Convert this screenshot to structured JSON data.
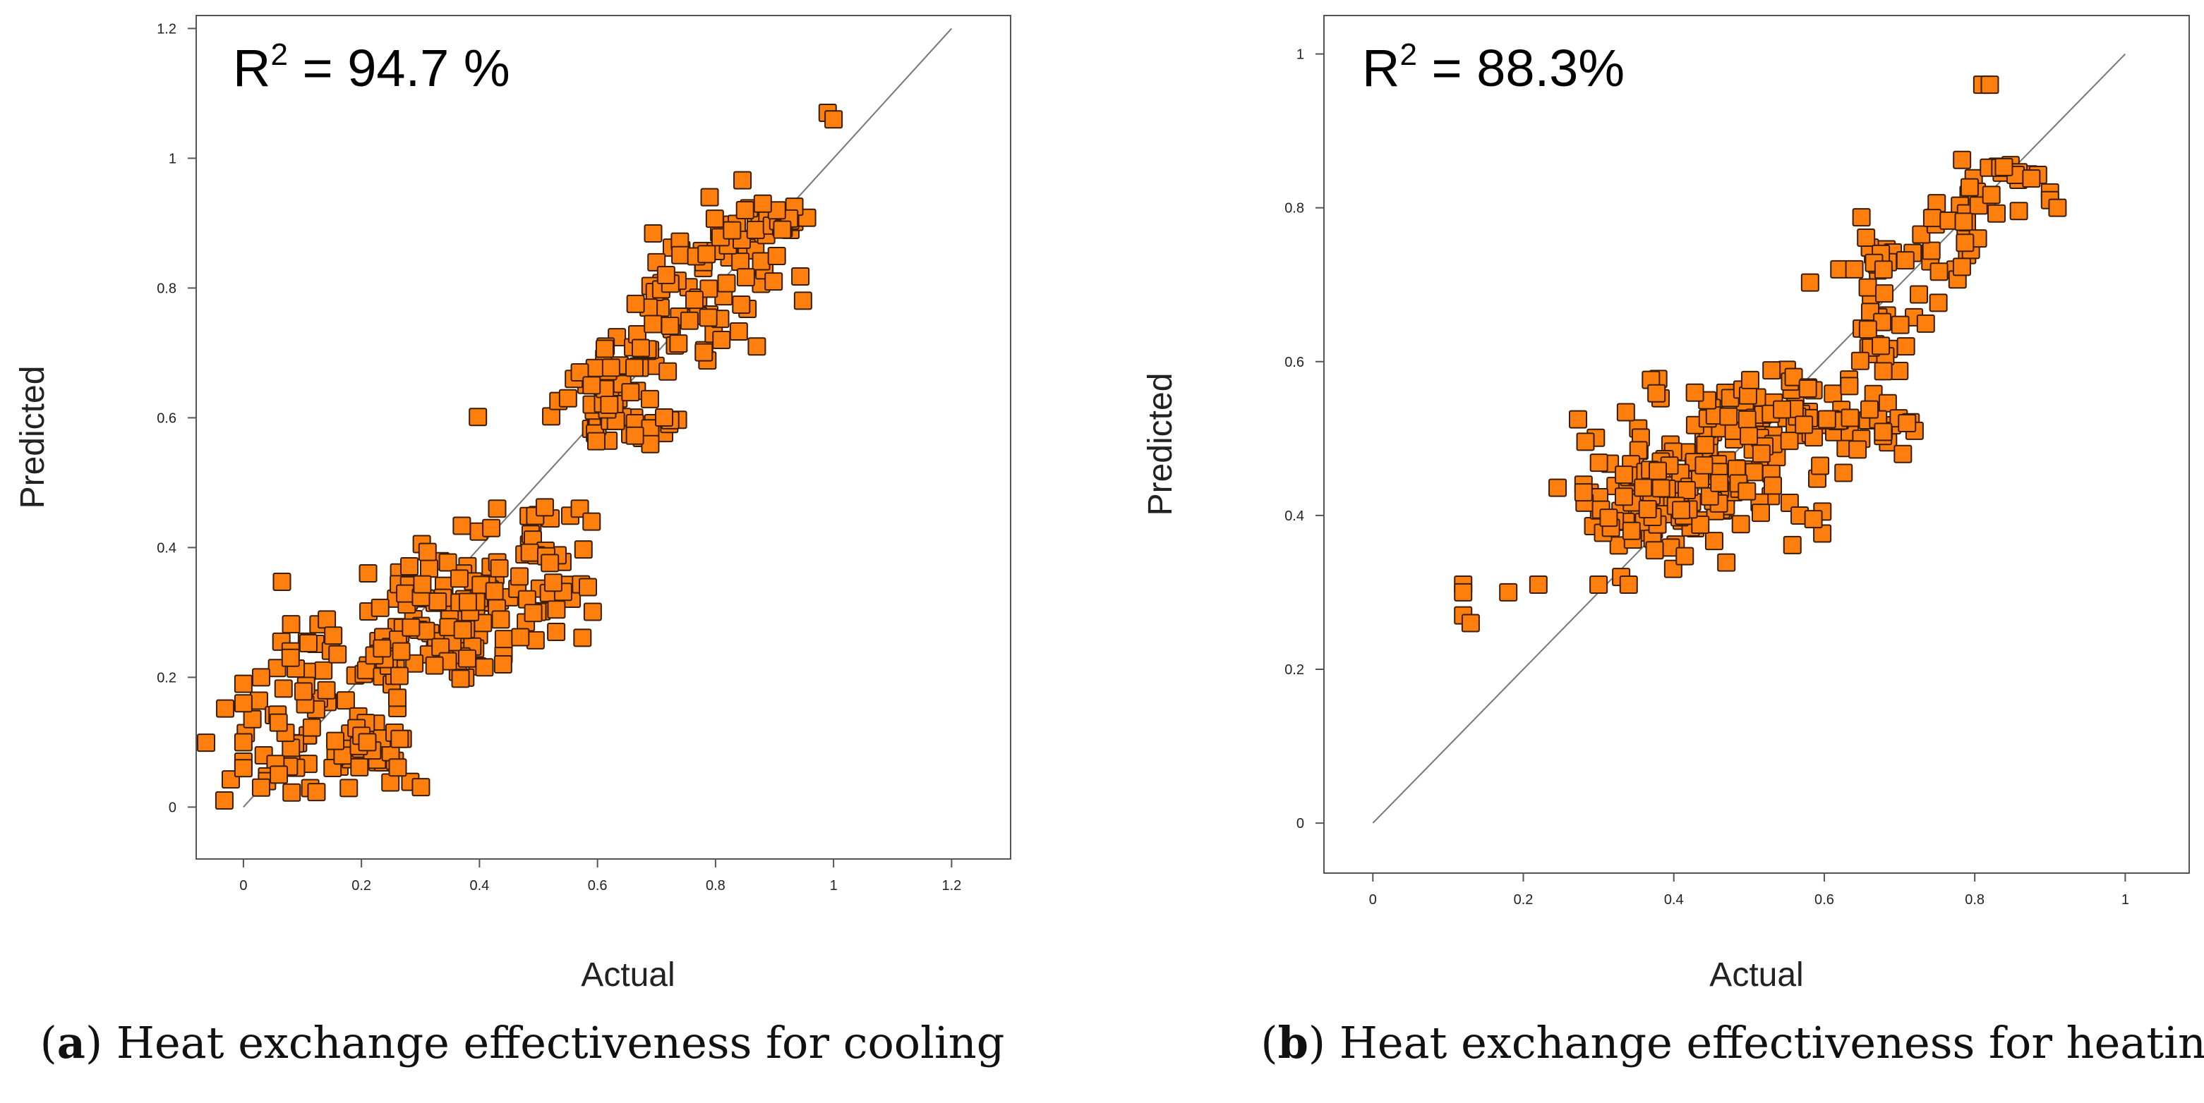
{
  "chart_data": [
    {
      "type": "scatter",
      "panel": "a",
      "title_prefix": "R",
      "title_sup": "2",
      "title_value": " = 94.7 %",
      "xlabel": "Actual",
      "ylabel": "Predicted",
      "xlim": [
        -0.08,
        1.3
      ],
      "ylim": [
        -0.08,
        1.22
      ],
      "xticks": [
        "0",
        "0.2",
        "0.4",
        "0.6",
        "0.8",
        "1",
        "1.2"
      ],
      "xtick_values": [
        0,
        0.2,
        0.4,
        0.6,
        0.8,
        1.0,
        1.2
      ],
      "yticks": [
        "0",
        "0.2",
        "0.4",
        "0.6",
        "0.8",
        "1",
        "1.2"
      ],
      "ytick_values": [
        0,
        0.2,
        0.4,
        0.6,
        0.8,
        1.0,
        1.2
      ],
      "reference_line": [
        [
          0,
          0
        ],
        [
          1.2,
          1.2
        ]
      ],
      "caption_label": "a",
      "caption_text": "Heat exchange effectiveness for cooling",
      "clusters": [
        {
          "cx": 0.5,
          "cy": 0.43,
          "sx": 0.045,
          "sy": 0.015,
          "n": 10
        },
        {
          "cx": 0.48,
          "cy": 0.35,
          "sx": 0.07,
          "sy": 0.04,
          "n": 40
        },
        {
          "cx": 0.33,
          "cy": 0.33,
          "sx": 0.08,
          "sy": 0.04,
          "n": 60
        },
        {
          "cx": 0.3,
          "cy": 0.24,
          "sx": 0.09,
          "sy": 0.04,
          "n": 60
        },
        {
          "cx": 0.18,
          "cy": 0.08,
          "sx": 0.06,
          "sy": 0.02,
          "n": 40
        },
        {
          "cx": 0.12,
          "cy": 0.17,
          "sx": 0.05,
          "sy": 0.06,
          "n": 30
        },
        {
          "cx": 0.02,
          "cy": 0.1,
          "sx": 0.03,
          "sy": 0.06,
          "n": 10
        },
        {
          "cx": 0.62,
          "cy": 0.6,
          "sx": 0.06,
          "sy": 0.025,
          "n": 40
        },
        {
          "cx": 0.65,
          "cy": 0.69,
          "sx": 0.05,
          "sy": 0.02,
          "n": 20
        },
        {
          "cx": 0.75,
          "cy": 0.77,
          "sx": 0.05,
          "sy": 0.05,
          "n": 40
        },
        {
          "cx": 0.86,
          "cy": 0.86,
          "sx": 0.05,
          "sy": 0.04,
          "n": 40
        },
        {
          "cx": 0.93,
          "cy": 0.9,
          "sx": 0.02,
          "sy": 0.015,
          "n": 15
        }
      ],
      "points": [
        [
          0.56,
          0.66
        ],
        [
          0.57,
          0.67
        ],
        [
          0.55,
          0.63
        ],
        [
          0.59,
          0.65
        ],
        [
          0.62,
          0.62
        ],
        [
          0.99,
          1.07
        ],
        [
          1.0,
          1.06
        ],
        [
          0.79,
          0.94
        ],
        [
          0.85,
          0.92
        ],
        [
          0.88,
          0.93
        ],
        [
          0.81,
          0.72
        ],
        [
          0.87,
          0.71
        ],
        [
          0.0,
          0.19
        ],
        [
          0.03,
          0.2
        ],
        [
          0.0,
          0.16
        ],
        [
          0.08,
          0.24
        ],
        [
          0.08,
          0.23
        ],
        [
          0.04,
          0.04
        ],
        [
          0.03,
          0.03
        ],
        [
          0.06,
          0.05
        ],
        [
          0.43,
          0.46
        ],
        [
          0.42,
          0.43
        ],
        [
          0.57,
          0.46
        ],
        [
          0.59,
          0.44
        ],
        [
          0.53,
          0.27
        ],
        [
          0.44,
          0.22
        ],
        [
          0.2,
          0.11
        ],
        [
          0.21,
          0.1
        ],
        [
          0.0,
          0.07
        ],
        [
          0.0,
          0.06
        ]
      ]
    },
    {
      "type": "scatter",
      "panel": "b",
      "title_prefix": "R",
      "title_sup": "2",
      "title_value": " = 88.3%",
      "xlabel": "Actual",
      "ylabel": "Predicted",
      "xlim": [
        -0.065,
        1.085
      ],
      "ylim": [
        -0.065,
        1.05
      ],
      "xticks": [
        "0",
        "0.2",
        "0.4",
        "0.6",
        "0.8",
        "1"
      ],
      "xtick_values": [
        0,
        0.2,
        0.4,
        0.6,
        0.8,
        1.0
      ],
      "yticks": [
        "0",
        "0.2",
        "0.4",
        "0.6",
        "0.8",
        "1"
      ],
      "ytick_values": [
        0,
        0.2,
        0.4,
        0.6,
        0.8,
        1.0
      ],
      "reference_line": [
        [
          0,
          0
        ],
        [
          1.0,
          1.0
        ]
      ],
      "caption_label": "b",
      "caption_text": "Heat exchange effectiveness for heating",
      "clusters": [
        {
          "cx": 0.45,
          "cy": 0.46,
          "sx": 0.08,
          "sy": 0.05,
          "n": 120
        },
        {
          "cx": 0.38,
          "cy": 0.41,
          "sx": 0.06,
          "sy": 0.04,
          "n": 60
        },
        {
          "cx": 0.56,
          "cy": 0.53,
          "sx": 0.06,
          "sy": 0.03,
          "n": 50
        },
        {
          "cx": 0.65,
          "cy": 0.52,
          "sx": 0.04,
          "sy": 0.02,
          "n": 15
        },
        {
          "cx": 0.67,
          "cy": 0.63,
          "sx": 0.03,
          "sy": 0.03,
          "n": 20
        },
        {
          "cx": 0.68,
          "cy": 0.72,
          "sx": 0.04,
          "sy": 0.035,
          "n": 30
        },
        {
          "cx": 0.79,
          "cy": 0.8,
          "sx": 0.03,
          "sy": 0.025,
          "n": 25
        },
        {
          "cx": 0.85,
          "cy": 0.85,
          "sx": 0.015,
          "sy": 0.01,
          "n": 12
        }
      ],
      "points": [
        [
          0.12,
          0.31
        ],
        [
          0.12,
          0.3
        ],
        [
          0.12,
          0.27
        ],
        [
          0.13,
          0.26
        ],
        [
          0.18,
          0.3
        ],
        [
          0.22,
          0.31
        ],
        [
          0.28,
          0.44
        ],
        [
          0.28,
          0.43
        ],
        [
          0.33,
          0.32
        ],
        [
          0.34,
          0.31
        ],
        [
          0.3,
          0.31
        ],
        [
          0.81,
          0.96
        ],
        [
          0.82,
          0.96
        ],
        [
          0.9,
          0.82
        ],
        [
          0.9,
          0.81
        ],
        [
          0.91,
          0.8
        ],
        [
          0.72,
          0.51
        ],
        [
          0.71,
          0.52
        ],
        [
          0.62,
          0.72
        ],
        [
          0.64,
          0.72
        ]
      ]
    }
  ],
  "colors": {
    "marker_fill": "#ff7f0e",
    "marker_stroke": "#3a1c00",
    "frame": "#555555",
    "reference_line": "#777777"
  }
}
